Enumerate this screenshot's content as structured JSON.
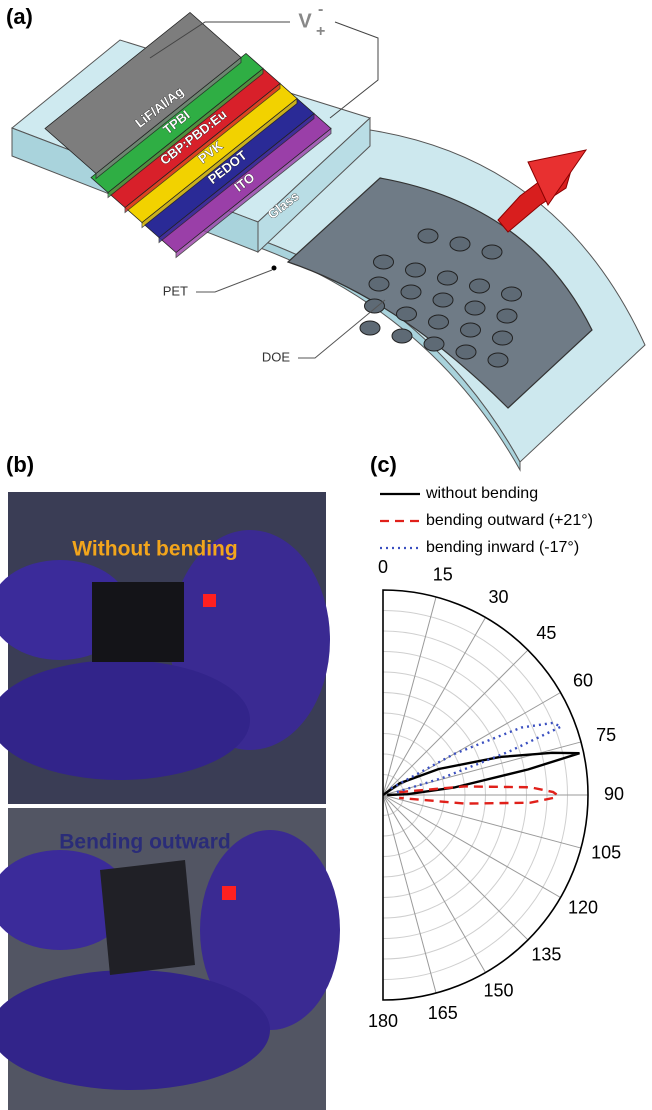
{
  "panel_a": {
    "label": "(a)",
    "layers": [
      "LiF/Al/Ag",
      "TPBI",
      "CBP:PBD:Eu",
      "PVK",
      "PEDOT",
      "ITO",
      "Glass"
    ],
    "voltage": {
      "symbol": "V",
      "minus": "-",
      "plus": "+"
    },
    "callouts": [
      "PET",
      "DOE"
    ]
  },
  "panel_b": {
    "label": "(b)",
    "captions": [
      "Without bending",
      "Bending outward"
    ]
  },
  "chart_data": {
    "type": "polar",
    "label": "(c)",
    "rlim": [
      0,
      1
    ],
    "rticks": [
      0.1,
      0.2,
      0.3,
      0.4,
      0.5,
      0.6,
      0.7,
      0.8,
      0.9,
      1.0
    ],
    "thetaticks": [
      0,
      15,
      30,
      45,
      60,
      75,
      90,
      105,
      120,
      135,
      150,
      165,
      180
    ],
    "series": [
      {
        "name": "without bending",
        "color": "#000000",
        "dash": "solid",
        "angles": [
          0,
          55,
          65,
          72,
          76,
          78,
          80,
          84,
          88,
          90
        ],
        "values": [
          0,
          0.1,
          0.3,
          0.6,
          0.85,
          0.98,
          0.72,
          0.35,
          0.12,
          0.02
        ]
      },
      {
        "name": "bending outward (+21°)",
        "color": "#e0201a",
        "dash": "dashed",
        "angles": [
          80,
          84,
          87,
          89,
          90,
          91,
          93,
          96,
          100
        ],
        "values": [
          0.08,
          0.4,
          0.72,
          0.83,
          0.85,
          0.83,
          0.72,
          0.4,
          0.08
        ]
      },
      {
        "name": "bending inward (-17°)",
        "color": "#3a4fc0",
        "dash": "dotted",
        "angles": [
          50,
          60,
          64,
          67,
          69,
          71,
          74,
          80
        ],
        "values": [
          0.05,
          0.4,
          0.75,
          0.9,
          0.93,
          0.65,
          0.3,
          0.05
        ]
      }
    ]
  }
}
